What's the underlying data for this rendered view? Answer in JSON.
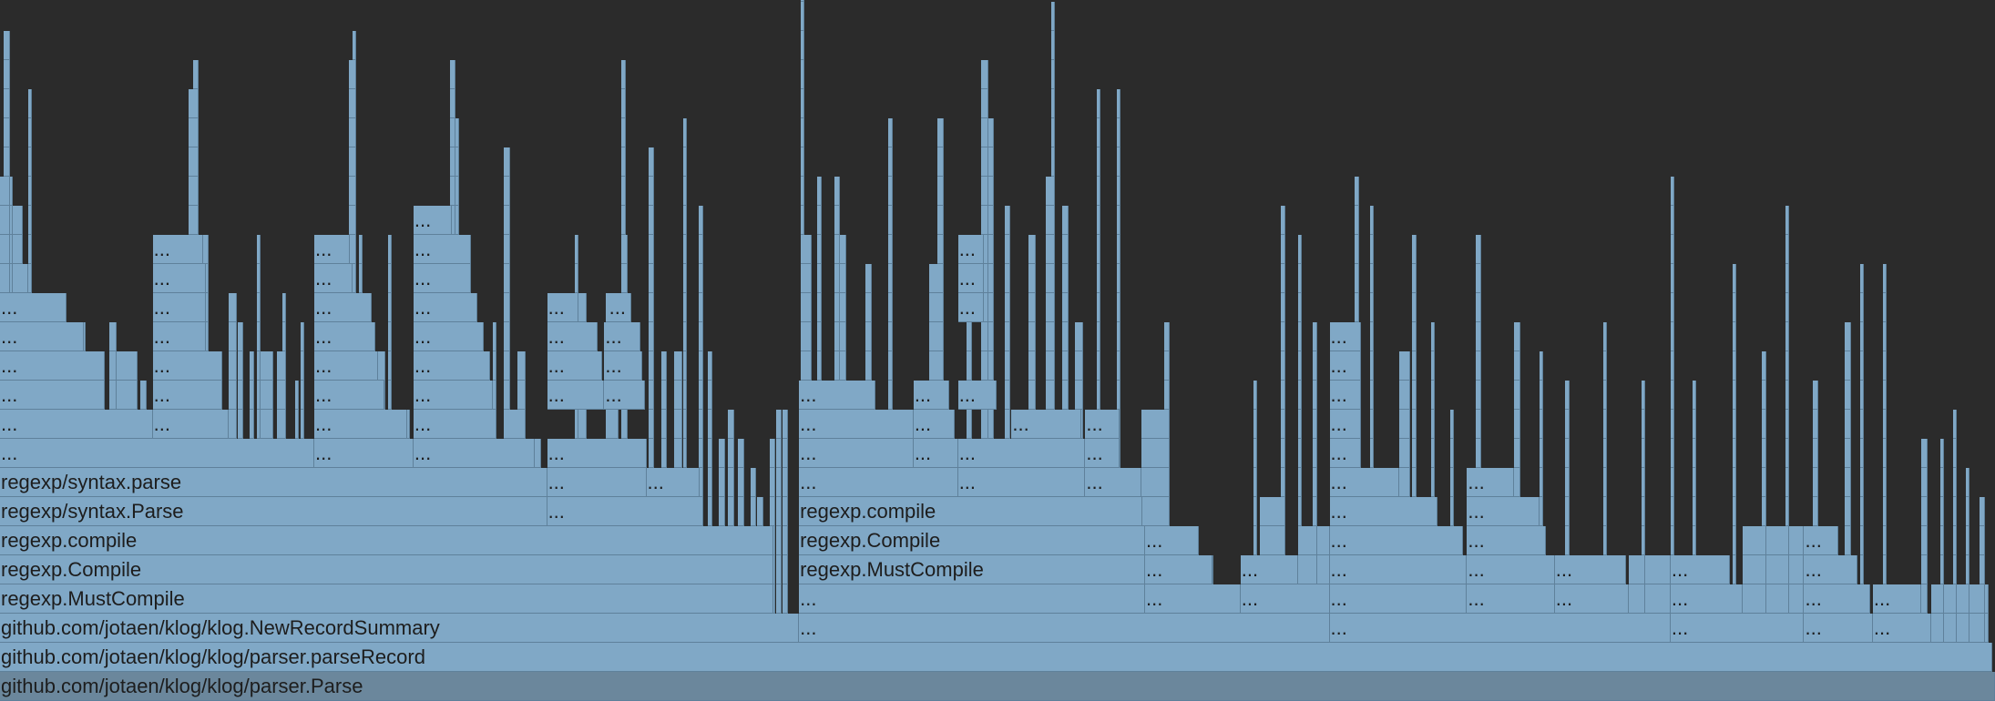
{
  "frames": [
    {
      "label": "github.com/jotaen/klog/klog/parser.Parse"
    },
    {
      "label": "github.com/jotaen/klog/klog/parser.parseRecord"
    },
    {
      "label": "github.com/jotaen/klog/klog.NewRecordSummary"
    },
    {
      "label": "..."
    },
    {
      "label": "..."
    },
    {
      "label": "..."
    },
    {
      "label": "..."
    },
    {
      "label": "..."
    },
    {
      "label": "regexp.MustCompile"
    },
    {
      "label": "..."
    },
    {
      "label": "..."
    },
    {
      "label": "..."
    },
    {
      "label": "..."
    },
    {
      "label": "..."
    },
    {
      "label": "..."
    },
    {
      "label": "..."
    },
    {
      "label": "..."
    },
    {
      "label": "..."
    },
    {
      "label": "regexp.Compile"
    },
    {
      "label": "regexp.MustCompile"
    },
    {
      "label": "..."
    },
    {
      "label": "..."
    },
    {
      "label": "..."
    },
    {
      "label": "..."
    },
    {
      "label": "..."
    },
    {
      "label": "..."
    },
    {
      "label": "..."
    },
    {
      "label": "regexp.compile"
    },
    {
      "label": "regexp.Compile"
    },
    {
      "label": "..."
    },
    {
      "label": "..."
    },
    {
      "label": "..."
    },
    {
      "label": "..."
    },
    {
      "label": "regexp/syntax.Parse"
    },
    {
      "label": "..."
    },
    {
      "label": "regexp.compile"
    },
    {
      "label": "..."
    },
    {
      "label": "..."
    },
    {
      "label": "regexp/syntax.parse"
    },
    {
      "label": "..."
    },
    {
      "label": "..."
    },
    {
      "label": "..."
    },
    {
      "label": "..."
    },
    {
      "label": "..."
    },
    {
      "label": "..."
    },
    {
      "label": "..."
    },
    {
      "label": "..."
    },
    {
      "label": "..."
    },
    {
      "label": "..."
    },
    {
      "label": "..."
    },
    {
      "label": "..."
    },
    {
      "label": "..."
    },
    {
      "label": "..."
    },
    {
      "label": "..."
    },
    {
      "label": "..."
    },
    {
      "label": "..."
    },
    {
      "label": "..."
    },
    {
      "label": "..."
    },
    {
      "label": "..."
    },
    {
      "label": "..."
    },
    {
      "label": "..."
    },
    {
      "label": "..."
    },
    {
      "label": "..."
    },
    {
      "label": "..."
    },
    {
      "label": "..."
    },
    {
      "label": "..."
    },
    {
      "label": "..."
    },
    {
      "label": "..."
    },
    {
      "label": "..."
    },
    {
      "label": "..."
    },
    {
      "label": "..."
    },
    {
      "label": "..."
    },
    {
      "label": "..."
    },
    {
      "label": "..."
    },
    {
      "label": "..."
    },
    {
      "label": "..."
    },
    {
      "label": "..."
    },
    {
      "label": "..."
    },
    {
      "label": "..."
    },
    {
      "label": "..."
    },
    {
      "label": "..."
    },
    {
      "label": "..."
    },
    {
      "label": "..."
    },
    {
      "label": "..."
    },
    {
      "label": "..."
    },
    {
      "label": "..."
    },
    {
      "label": "..."
    },
    {
      "label": "..."
    },
    {
      "label": "..."
    },
    {
      "label": "..."
    },
    {
      "label": "..."
    },
    {
      "label": "..."
    },
    {
      "label": "..."
    },
    {
      "label": "..."
    },
    {
      "label": "..."
    },
    {
      "label": "..."
    },
    {
      "label": "..."
    },
    {
      "label": "..."
    },
    {
      "label": "..."
    },
    {
      "label": "..."
    },
    {
      "label": "..."
    },
    {
      "label": "..."
    },
    {
      "label": "..."
    },
    {
      "label": "..."
    }
  ]
}
